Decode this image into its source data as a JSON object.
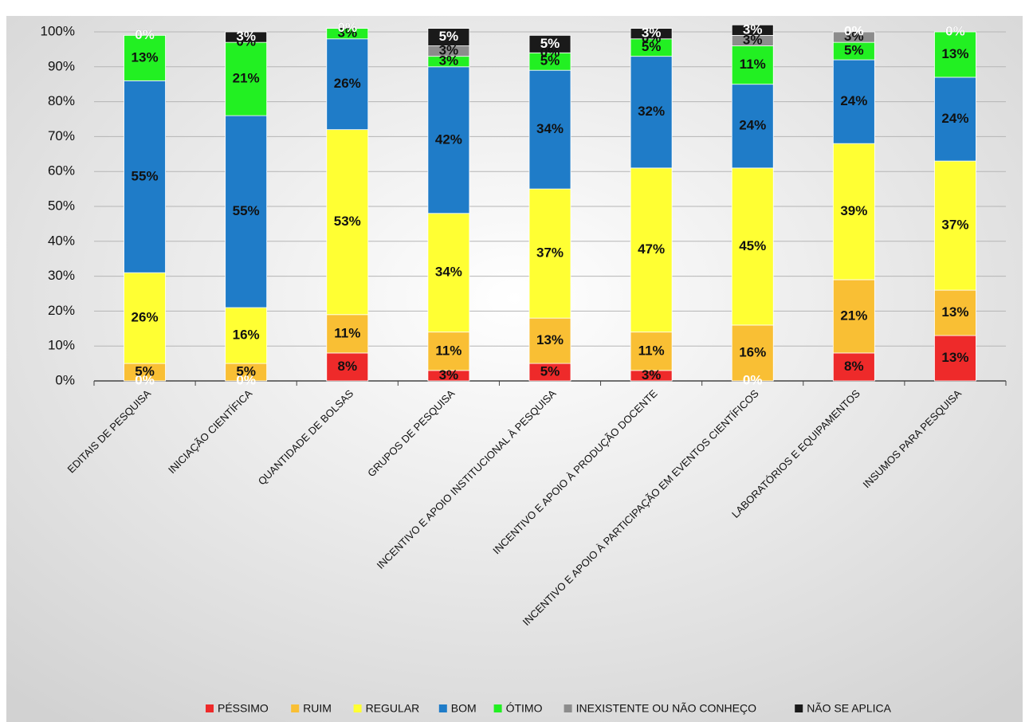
{
  "chart_data": {
    "type": "stacked_bar",
    "categories": [
      "EDITAIS DE PESQUISA",
      "INICIAÇÃO CIENTÍFICA",
      "QUANTIDADE DE BOLSAS",
      "GRUPOS DE PESQUISA",
      "INCENTIVO E APOIO INSTITUCIONAL À PESQUISA",
      "INCENTIVO E APOIO À PRODUÇÃO DOCENTE",
      "INCENTIVO E APOIO À PARTICIPAÇÃO EM EVENTOS CIENTÍFICOS",
      "LABORATÓRIOS E EQUIPAMENTOS",
      "INSUMOS PARA PESQUISA"
    ],
    "series": [
      {
        "name": "PÉSSIMO",
        "color": "#ee2a2a",
        "values": [
          0,
          0,
          8,
          3,
          5,
          3,
          0,
          8,
          13
        ],
        "value_labels": [
          "0%",
          "0%",
          "8%",
          "3%",
          "5%",
          "3%",
          "0%",
          "8%",
          "13%"
        ]
      },
      {
        "name": "RUIM",
        "color": "#f9bf34",
        "values": [
          5,
          5,
          11,
          11,
          13,
          11,
          16,
          21,
          13
        ],
        "value_labels": [
          "5%",
          "5%",
          "11%",
          "11%",
          "13%",
          "11%",
          "16%",
          "21%",
          "13%"
        ]
      },
      {
        "name": "REGULAR",
        "color": "#ffff33",
        "values": [
          26,
          16,
          53,
          34,
          37,
          47,
          45,
          39,
          37
        ],
        "value_labels": [
          "26%",
          "16%",
          "53%",
          "34%",
          "37%",
          "47%",
          "45%",
          "39%",
          "37%"
        ]
      },
      {
        "name": "BOM",
        "color": "#1f7cc8",
        "values": [
          55,
          55,
          26,
          42,
          34,
          32,
          24,
          24,
          24
        ],
        "value_labels": [
          "55%",
          "55%",
          "26%",
          "42%",
          "34%",
          "32%",
          "24%",
          "24%",
          "24%"
        ]
      },
      {
        "name": "ÓTIMO",
        "color": "#22f022",
        "values": [
          13,
          21,
          3,
          3,
          5,
          5,
          11,
          5,
          13
        ],
        "value_labels": [
          "13%",
          "21%",
          "3%",
          "3%",
          "5%",
          "5%",
          "11%",
          "5%",
          "13%"
        ]
      },
      {
        "name": "INEXISTENTE OU NÃO CONHEÇO",
        "color": "#8c8c8c",
        "values": [
          0,
          0,
          0,
          3,
          0,
          0,
          3,
          3,
          0
        ],
        "value_labels": [
          "0%",
          "0%",
          "0%",
          "3%",
          "0%",
          "0%",
          "3%",
          "3%",
          "0%"
        ]
      },
      {
        "name": "NÃO SE APLICA",
        "color": "#1a1a1a",
        "values": [
          0,
          3,
          0,
          5,
          5,
          3,
          3,
          0,
          0
        ],
        "value_labels": [
          "0%",
          "3%",
          "0%",
          "5%",
          "5%",
          "3%",
          "3%",
          "0%",
          "0%"
        ]
      }
    ],
    "ylim": [
      0,
      100
    ],
    "yticks": [
      {
        "value": 0,
        "label": "0%"
      },
      {
        "value": 10,
        "label": "10%"
      },
      {
        "value": 20,
        "label": "20%"
      },
      {
        "value": 30,
        "label": "30%"
      },
      {
        "value": 40,
        "label": "40%"
      },
      {
        "value": 50,
        "label": "50%"
      },
      {
        "value": 60,
        "label": "60%"
      },
      {
        "value": 70,
        "label": "70%"
      },
      {
        "value": 80,
        "label": "80%"
      },
      {
        "value": 90,
        "label": "90%"
      },
      {
        "value": 100,
        "label": "100%"
      }
    ],
    "grid": true,
    "legend": "bottom"
  }
}
